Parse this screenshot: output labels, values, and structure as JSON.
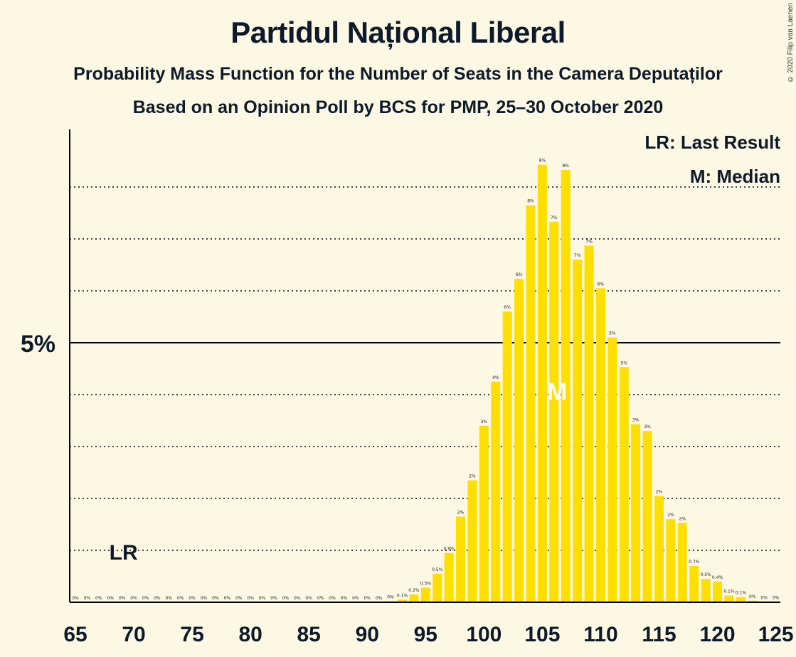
{
  "header": {
    "title": "Partidul Național Liberal",
    "subtitle": "Probability Mass Function for the Number of Seats in the Camera Deputaților",
    "subtitle2": "Based on an Opinion Poll by BCS for PMP, 25–30 October 2020",
    "copyright": "© 2020 Filip van Laenen"
  },
  "legend": {
    "last_result": "LR: Last Result",
    "median": "M: Median"
  },
  "colors": {
    "bar": "#ffde00",
    "background": "#fdf8e3",
    "text": "#0d1a2b"
  },
  "chart_data": {
    "type": "bar",
    "title": "Partidul Național Liberal",
    "xlabel": "",
    "ylabel": "",
    "x_ticks": [
      65,
      70,
      75,
      80,
      85,
      90,
      95,
      100,
      105,
      110,
      115,
      120,
      125
    ],
    "y_tick_label": "5%",
    "y_major": 5,
    "y_minor_step": 1,
    "ylim": [
      0,
      8.8
    ],
    "xlim": [
      64.5,
      125.5
    ],
    "last_result": {
      "seats": 69,
      "label": "LR"
    },
    "median": {
      "seats": 107,
      "label": "M"
    },
    "seats": [
      65,
      66,
      67,
      68,
      69,
      70,
      71,
      72,
      73,
      74,
      75,
      76,
      77,
      78,
      79,
      80,
      81,
      82,
      83,
      84,
      85,
      86,
      87,
      88,
      89,
      90,
      91,
      92,
      93,
      94,
      95,
      96,
      97,
      98,
      99,
      100,
      101,
      102,
      103,
      104,
      105,
      106,
      107,
      108,
      109,
      110,
      111,
      112,
      113,
      114,
      115,
      116,
      117,
      118,
      119,
      120,
      121,
      122,
      123,
      124,
      125
    ],
    "values": [
      0,
      0,
      0,
      0,
      0,
      0,
      0,
      0,
      0,
      0,
      0,
      0,
      0,
      0,
      0,
      0,
      0,
      0,
      0,
      0,
      0,
      0,
      0,
      0,
      0,
      0,
      0,
      0.02,
      0.05,
      0.15,
      0.28,
      0.55,
      0.95,
      1.65,
      2.35,
      3.4,
      4.25,
      5.6,
      6.23,
      7.65,
      8.43,
      7.33,
      8.33,
      6.6,
      6.87,
      6.05,
      5.1,
      4.53,
      3.43,
      3.3,
      2.05,
      1.6,
      1.53,
      0.7,
      0.45,
      0.4,
      0.13,
      0.1,
      0.03,
      0.01,
      0.01
    ],
    "labels": [
      "0%",
      "0%",
      "0%",
      "0%",
      "0%",
      "0%",
      "0%",
      "0%",
      "0%",
      "0%",
      "0%",
      "0%",
      "0%",
      "0%",
      "0%",
      "0%",
      "0%",
      "0%",
      "0%",
      "0%",
      "0%",
      "0%",
      "0%",
      "0%",
      "0%",
      "0%",
      "0%",
      "0%",
      "0.1%",
      "0.2%",
      "0.3%",
      "0.5%",
      "0.9%",
      "2%",
      "2%",
      "3%",
      "4%",
      "6%",
      "6%",
      "8%",
      "8%",
      "7%",
      "8%",
      "7%",
      "7%",
      "6%",
      "5%",
      "5%",
      "3%",
      "3%",
      "2%",
      "2%",
      "2%",
      "0.7%",
      "0.5%",
      "0.4%",
      "0.1%",
      "0.1%",
      "0%",
      "0%",
      "0%"
    ]
  }
}
